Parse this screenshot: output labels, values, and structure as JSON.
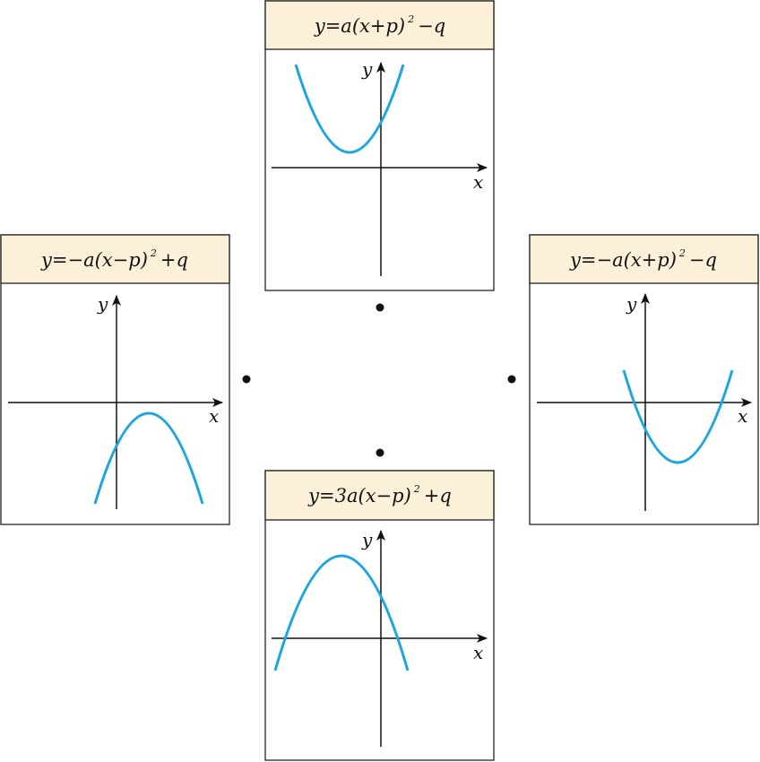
{
  "panels": [
    {
      "formula": {
        "main": "y=a(x+p)",
        "power": "2",
        "tail": "−q"
      },
      "x_label": "x",
      "y_label": "y"
    },
    {
      "formula": {
        "main": "y=−a(x−p)",
        "power": "2",
        "tail": "+q"
      },
      "x_label": "x",
      "y_label": "y"
    },
    {
      "formula": {
        "main": "y=−a(x+p)",
        "power": "2",
        "tail": "−q"
      },
      "x_label": "x",
      "y_label": "y"
    },
    {
      "formula": {
        "main": "y=3a(x−p)",
        "power": "2",
        "tail": "+q"
      },
      "x_label": "x",
      "y_label": "y"
    }
  ]
}
